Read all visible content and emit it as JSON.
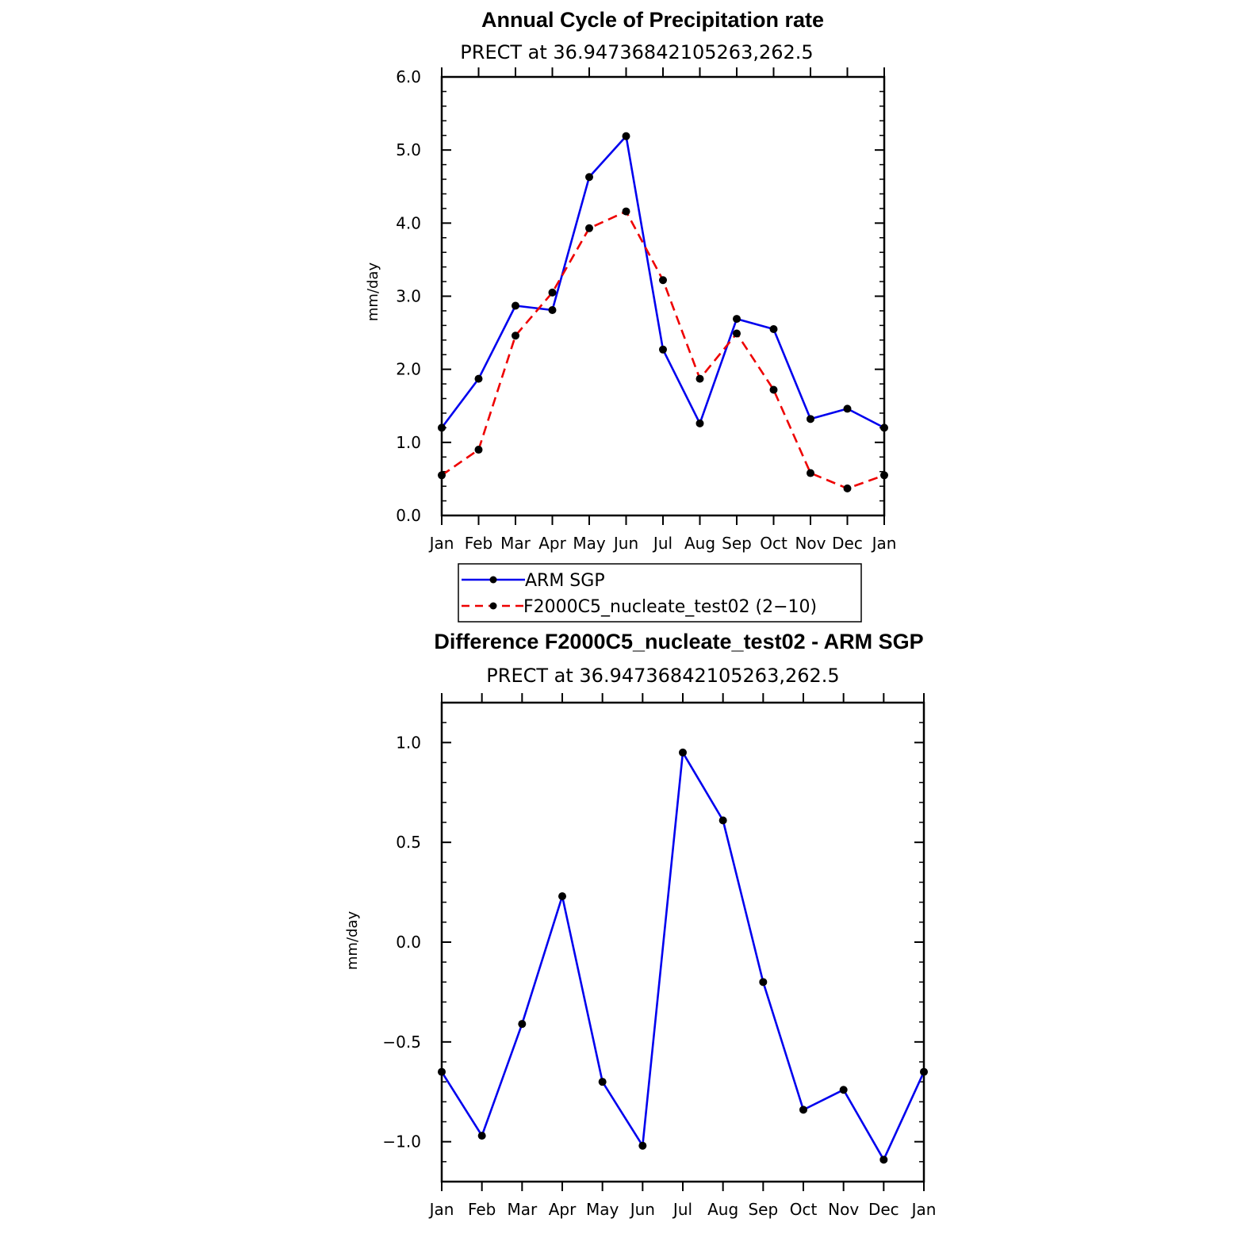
{
  "chart_data": [
    {
      "type": "line",
      "title": "Annual Cycle of Precipitation rate",
      "subtitle": "PRECT at 36.94736842105263,262.5",
      "ylabel": "mm/day",
      "ylim": [
        0,
        6
      ],
      "yticks": [
        "0.0",
        "1.0",
        "2.0",
        "3.0",
        "4.0",
        "5.0",
        "6.0"
      ],
      "categories": [
        "Jan",
        "Feb",
        "Mar",
        "Apr",
        "May",
        "Jun",
        "Jul",
        "Aug",
        "Sep",
        "Oct",
        "Nov",
        "Dec",
        "Jan"
      ],
      "series": [
        {
          "name": "ARM SGP",
          "color": "#0000ee",
          "dash": "solid",
          "values": [
            1.2,
            1.87,
            2.87,
            2.81,
            4.63,
            5.19,
            2.27,
            1.26,
            2.69,
            2.55,
            1.32,
            1.46,
            1.2
          ]
        },
        {
          "name": "F2000C5_nucleate_test02 (2−10)",
          "color": "#ee0000",
          "dash": "dashed",
          "values": [
            0.55,
            0.9,
            2.46,
            3.05,
            3.93,
            4.16,
            3.22,
            1.87,
            2.49,
            1.72,
            0.58,
            0.37,
            0.55
          ]
        }
      ],
      "legend": "bottom"
    },
    {
      "type": "line",
      "title": "Difference F2000C5_nucleate_test02 - ARM SGP",
      "subtitle": "PRECT at 36.94736842105263,262.5",
      "ylabel": "mm/day",
      "ylim": [
        -1.2,
        1.2
      ],
      "yticks": [
        "−1.0",
        "−0.5",
        "0.0",
        "0.5",
        "1.0"
      ],
      "ytick_values": [
        -1.0,
        -0.5,
        0.0,
        0.5,
        1.0
      ],
      "categories": [
        "Jan",
        "Feb",
        "Mar",
        "Apr",
        "May",
        "Jun",
        "Jul",
        "Aug",
        "Sep",
        "Oct",
        "Nov",
        "Dec",
        "Jan"
      ],
      "series": [
        {
          "color": "#0000ee",
          "dash": "solid",
          "values": [
            -0.65,
            -0.97,
            -0.41,
            0.23,
            -0.7,
            -1.02,
            0.95,
            0.61,
            -0.2,
            -0.84,
            -0.74,
            -1.09,
            -0.65
          ]
        }
      ]
    }
  ]
}
